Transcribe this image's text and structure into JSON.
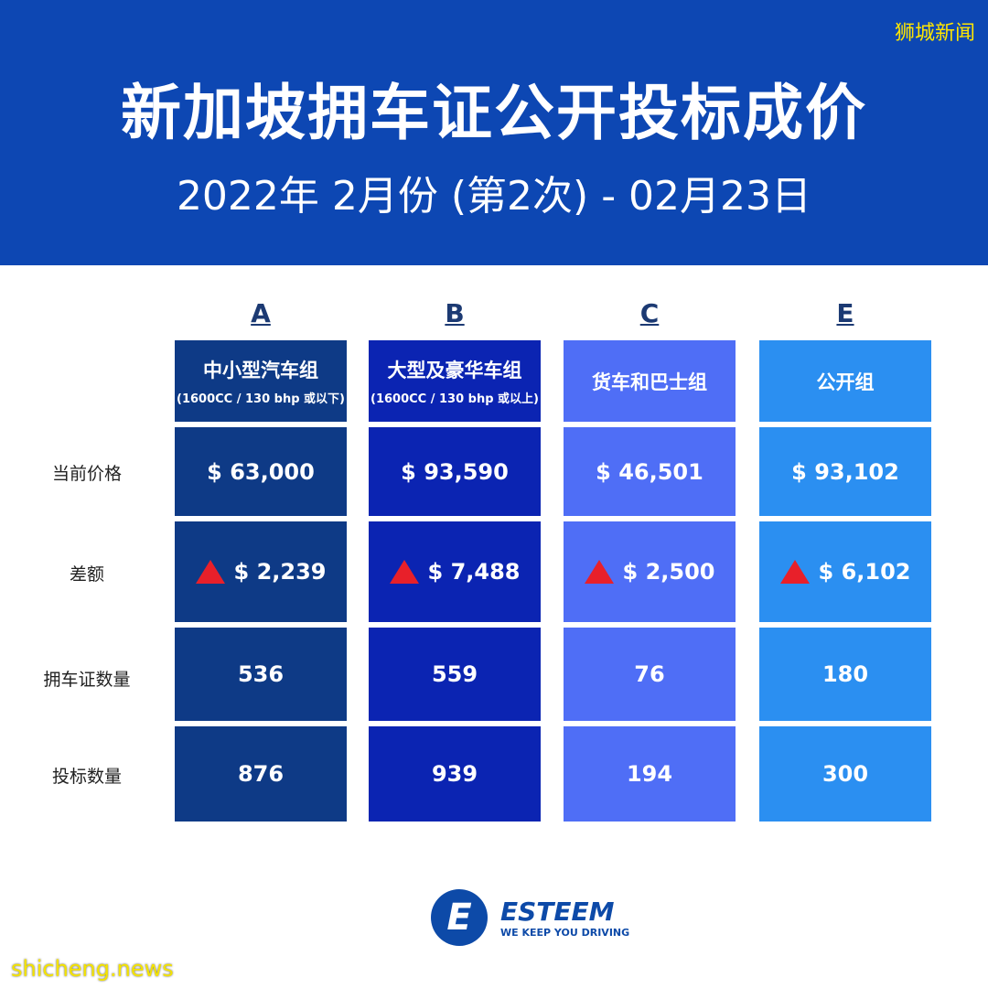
{
  "header": {
    "title": "新加坡拥车证公开投标成价",
    "subtitle": "2022年 2月份 (第2次) - 02月23日",
    "source": "狮城新闻"
  },
  "row_labels": [
    "当前价格",
    "差额",
    "拥车证数量",
    "投标数量"
  ],
  "categories": [
    {
      "letter": "A",
      "name": "中小型汽车组",
      "sub": "(1600CC / 130 bhp 或以下)",
      "price": "$ 63,000",
      "change": "$ 2,239",
      "direction": "up",
      "quota": "536",
      "bids": "876",
      "color": "#0e3a86"
    },
    {
      "letter": "B",
      "name": "大型及豪华车组",
      "sub": "(1600CC / 130 bhp 或以上)",
      "price": "$ 93,590",
      "change": "$ 7,488",
      "direction": "up",
      "quota": "559",
      "bids": "939",
      "color": "#0b24b2"
    },
    {
      "letter": "C",
      "name": "货车和巴士组",
      "sub": "",
      "price": "$ 46,501",
      "change": "$ 2,500",
      "direction": "up",
      "quota": "76",
      "bids": "194",
      "color": "#4f6ef6"
    },
    {
      "letter": "E",
      "name": "公开组",
      "sub": "",
      "price": "$ 93,102",
      "change": "$ 6,102",
      "direction": "up",
      "quota": "180",
      "bids": "300",
      "color": "#2b8ff1"
    }
  ],
  "logo": {
    "mark": "E",
    "name": "ESTEEM",
    "tagline": "WE KEEP YOU DRIVING"
  },
  "watermark": "shicheng.news"
}
